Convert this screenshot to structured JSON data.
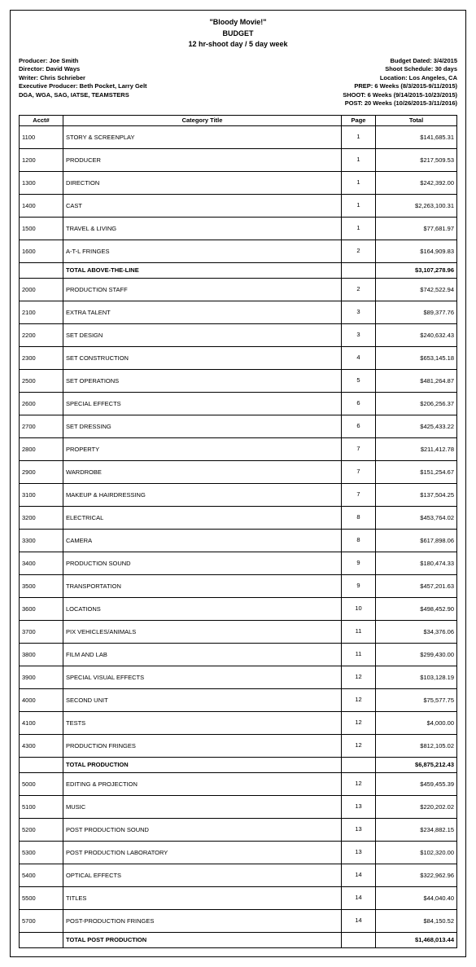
{
  "header": {
    "movie_title": "\"Bloody Movie!\"",
    "budget_label": "BUDGET",
    "schedule_label": "12 hr-shoot day / 5 day week"
  },
  "meta_left": {
    "producer": "Producer: Joe Smith",
    "director": "Director: David Ways",
    "writer": "Writer: Chris Schrieber",
    "exec_producer": "Executive Producer: Beth Pocket, Larry Gelt",
    "unions": "DGA, WGA, SAG, IATSE, TEAMSTERS"
  },
  "meta_right": {
    "budget_dated": "Budget Dated: 3/4/2015",
    "shoot_schedule": "Shoot Schedule: 30 days",
    "location": "Location: Los Angeles, CA",
    "prep": "PREP: 6 Weeks (8/3/2015-9/11/2015)",
    "shoot": "SHOOT: 6 Weeks (9/14/2015-10/23/2015)",
    "post": "POST: 20 Weeks (10/26/2015-3/11/2016)"
  },
  "columns": {
    "acct": "Acct#",
    "title": "Category Title",
    "page": "Page",
    "total": "Total"
  },
  "sections": [
    {
      "rows": [
        {
          "acct": "1100",
          "title": "STORY & SCREENPLAY",
          "page": "1",
          "total": "$141,685.31"
        },
        {
          "acct": "1200",
          "title": "PRODUCER",
          "page": "1",
          "total": "$217,509.53"
        },
        {
          "acct": "1300",
          "title": "DIRECTION",
          "page": "1",
          "total": "$242,392.00"
        },
        {
          "acct": "1400",
          "title": "CAST",
          "page": "1",
          "total": "$2,263,100.31"
        },
        {
          "acct": "1500",
          "title": "TRAVEL & LIVING",
          "page": "1",
          "total": "$77,681.97"
        },
        {
          "acct": "1600",
          "title": "A-T-L FRINGES",
          "page": "2",
          "total": "$164,909.83"
        }
      ],
      "subtotal": {
        "title": "TOTAL ABOVE-THE-LINE",
        "total": "$3,107,278.96"
      }
    },
    {
      "rows": [
        {
          "acct": "2000",
          "title": "PRODUCTION STAFF",
          "page": "2",
          "total": "$742,522.94"
        },
        {
          "acct": "2100",
          "title": "EXTRA TALENT",
          "page": "3",
          "total": "$89,377.76"
        },
        {
          "acct": "2200",
          "title": "SET DESIGN",
          "page": "3",
          "total": "$240,632.43"
        },
        {
          "acct": "2300",
          "title": "SET CONSTRUCTION",
          "page": "4",
          "total": "$653,145.18"
        },
        {
          "acct": "2500",
          "title": "SET OPERATIONS",
          "page": "5",
          "total": "$481,264.87"
        },
        {
          "acct": "2600",
          "title": "SPECIAL EFFECTS",
          "page": "6",
          "total": "$206,256.37"
        },
        {
          "acct": "2700",
          "title": "SET DRESSING",
          "page": "6",
          "total": "$425,433.22"
        },
        {
          "acct": "2800",
          "title": "PROPERTY",
          "page": "7",
          "total": "$211,412.78"
        },
        {
          "acct": "2900",
          "title": "WARDROBE",
          "page": "7",
          "total": "$151,254.67"
        },
        {
          "acct": "3100",
          "title": "MAKEUP & HAIRDRESSING",
          "page": "7",
          "total": "$137,504.25"
        },
        {
          "acct": "3200",
          "title": "ELECTRICAL",
          "page": "8",
          "total": "$453,764.02"
        },
        {
          "acct": "3300",
          "title": "CAMERA",
          "page": "8",
          "total": "$617,898.06"
        },
        {
          "acct": "3400",
          "title": "PRODUCTION SOUND",
          "page": "9",
          "total": "$180,474.33"
        },
        {
          "acct": "3500",
          "title": "TRANSPORTATION",
          "page": "9",
          "total": "$457,201.63"
        },
        {
          "acct": "3600",
          "title": "LOCATIONS",
          "page": "10",
          "total": "$498,452.90"
        },
        {
          "acct": "3700",
          "title": "PIX VEHICLES/ANIMALS",
          "page": "11",
          "total": "$34,376.06"
        },
        {
          "acct": "3800",
          "title": "FILM AND LAB",
          "page": "11",
          "total": "$299,430.00"
        },
        {
          "acct": "3900",
          "title": "SPECIAL VISUAL EFFECTS",
          "page": "12",
          "total": "$103,128.19"
        },
        {
          "acct": "4000",
          "title": "SECOND UNIT",
          "page": "12",
          "total": "$75,577.75"
        },
        {
          "acct": "4100",
          "title": "TESTS",
          "page": "12",
          "total": "$4,000.00"
        },
        {
          "acct": "4300",
          "title": "PRODUCTION FRINGES",
          "page": "12",
          "total": "$812,105.02"
        }
      ],
      "subtotal": {
        "title": "TOTAL PRODUCTION",
        "total": "$6,875,212.43"
      }
    },
    {
      "rows": [
        {
          "acct": "5000",
          "title": "EDITING & PROJECTION",
          "page": "12",
          "total": "$459,455.39"
        },
        {
          "acct": "5100",
          "title": "MUSIC",
          "page": "13",
          "total": "$220,202.02"
        },
        {
          "acct": "5200",
          "title": "POST PRODUCTION SOUND",
          "page": "13",
          "total": "$234,882.15"
        },
        {
          "acct": "5300",
          "title": "POST PRODUCTION LABORATORY",
          "page": "13",
          "total": "$102,320.00"
        },
        {
          "acct": "5400",
          "title": "OPTICAL EFFECTS",
          "page": "14",
          "total": "$322,962.96"
        },
        {
          "acct": "5500",
          "title": "TITLES",
          "page": "14",
          "total": "$44,040.40"
        },
        {
          "acct": "5700",
          "title": "POST-PRODUCTION FRINGES",
          "page": "14",
          "total": "$84,150.52"
        }
      ],
      "subtotal": {
        "title": "TOTAL POST PRODUCTION",
        "total": "$1,468,013.44"
      }
    }
  ]
}
